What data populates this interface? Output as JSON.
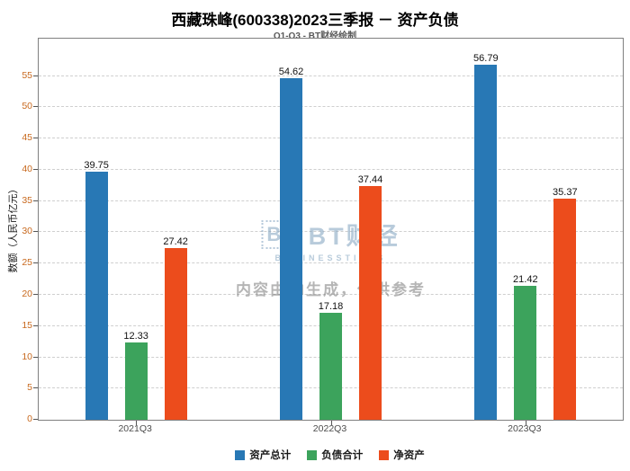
{
  "chart_data": {
    "type": "bar",
    "title": "西藏珠峰(600338)2023三季报 － 资产负债",
    "subtitle": "Q1-Q3 - BT财经绘制",
    "categories": [
      "2021Q3",
      "2022Q3",
      "2023Q3"
    ],
    "series": [
      {
        "name": "资产总计",
        "color": "#2878b5",
        "values": [
          39.75,
          54.62,
          56.79
        ]
      },
      {
        "name": "负债合计",
        "color": "#3ca35c",
        "values": [
          12.33,
          17.18,
          21.42
        ]
      },
      {
        "name": "净资产",
        "color": "#ec4c1c",
        "values": [
          27.42,
          37.44,
          35.37
        ]
      }
    ],
    "xlabel": "",
    "ylabel": "数额（人民币亿元）",
    "ylim": [
      0,
      61
    ],
    "yticks": [
      0,
      5,
      10,
      15,
      20,
      25,
      30,
      35,
      40,
      45,
      50,
      55
    ],
    "grid": true,
    "grid_style": "dashed-horizontal",
    "legend_position": "bottom",
    "value_labels": true
  },
  "watermark": {
    "logo_text": "BT",
    "brand": "BT财经",
    "brand_sub": "BUSINESSTIVES",
    "notice": "内容由AI生成，仅供参考"
  },
  "colors": {
    "ytick_labels": "#c8691e",
    "xtick_labels": "#4d4d4d",
    "grid": "#cfcfcf",
    "plot_border": "#808080",
    "watermark_blue": "rgba(125,160,190,0.55)",
    "watermark_gray": "rgba(120,120,120,0.55)"
  }
}
